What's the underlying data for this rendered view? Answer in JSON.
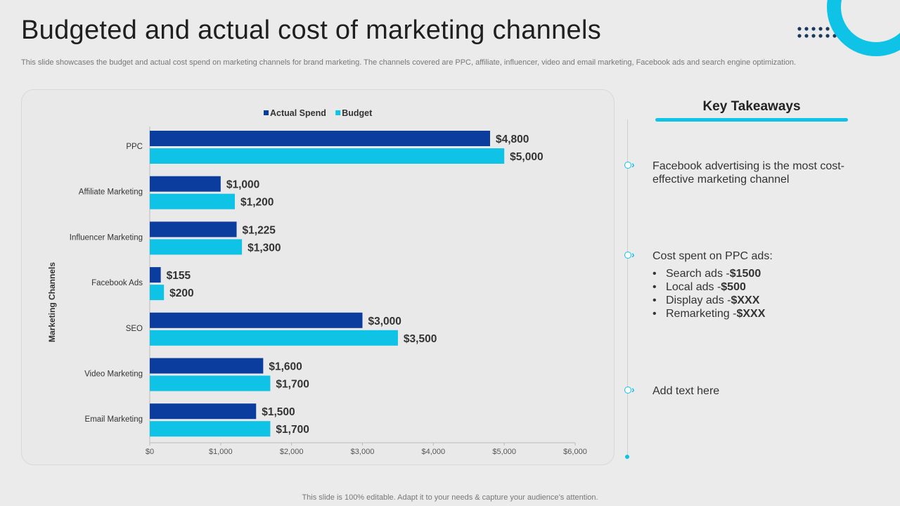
{
  "slide": {
    "title": "Budgeted and actual cost of marketing channels",
    "subtitle": "This slide showcases the budget and actual cost spend on marketing channels for brand marketing. The channels covered are PPC, affiliate, influencer, video and email marketing, Facebook ads and search engine optimization.",
    "footer": "This slide is 100% editable. Adapt it to your needs & capture your audience’s attention."
  },
  "colors": {
    "actual": "#0a3d9e",
    "budget": "#0fc3e6",
    "accent": "#0fc3e6",
    "dots": "#1a3a5c"
  },
  "chart_data": {
    "type": "bar",
    "orientation": "horizontal",
    "categories": [
      "PPC",
      "Affiliate Marketing",
      "Influencer Marketing",
      "Facebook Ads",
      "SEO",
      "Video Marketing",
      "Email Marketing"
    ],
    "series": [
      {
        "name": "Actual Spend",
        "values": [
          4800,
          1000,
          1225,
          155,
          3000,
          1600,
          1500
        ],
        "labels": [
          "$4,800",
          "$1,000",
          "$1,225",
          "$155",
          "$3,000",
          "$1,600",
          "$1,500"
        ]
      },
      {
        "name": "Budget",
        "values": [
          5000,
          1200,
          1300,
          200,
          3500,
          1700,
          1700
        ],
        "labels": [
          "$5,000",
          "$1,200",
          "$1,300",
          "$200",
          "$3,500",
          "$1,700",
          "$1,700"
        ]
      }
    ],
    "xlim": [
      0,
      6000
    ],
    "xticks": [
      0,
      1000,
      2000,
      3000,
      4000,
      5000,
      6000
    ],
    "xtick_labels": [
      "$0",
      "$1,000",
      "$2,000",
      "$3,000",
      "$4,000",
      "$5,000",
      "$6,000"
    ],
    "ylabel": "Marketing Channels",
    "xlabel": "",
    "legend_position": "top-center",
    "grid": false
  },
  "takeaways": {
    "title": "Key Takeaways",
    "items": [
      {
        "text": "Facebook advertising is the most cost-effective marketing channel"
      },
      {
        "text": "Cost spent on PPC ads:"
      },
      {
        "text": "Add text here"
      }
    ],
    "ppc_breakdown": [
      {
        "label": "Search ads - ",
        "value": "$1500"
      },
      {
        "label": "Local ads - ",
        "value": "$500"
      },
      {
        "label": "Display ads - ",
        "value": "$XXX"
      },
      {
        "label": "Remarketing - ",
        "value": "$XXX"
      }
    ]
  }
}
